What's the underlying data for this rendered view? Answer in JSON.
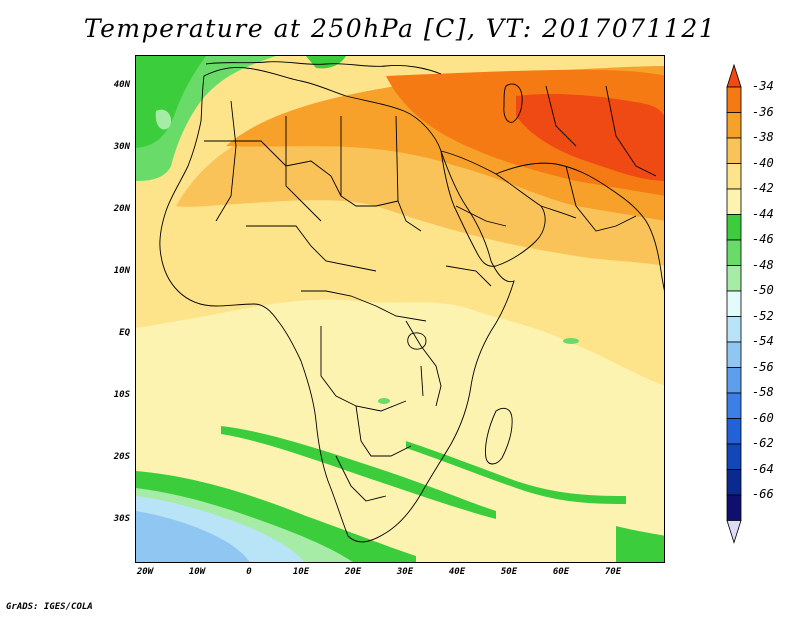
{
  "title": "Temperature at 250hPa [C], VT: 2017071121",
  "credit": "GrADS: IGES/COLA",
  "latitude_labels": [
    "40N",
    "30N",
    "20N",
    "10N",
    "EQ",
    "10S",
    "20S",
    "30S"
  ],
  "longitude_labels": [
    "20W",
    "10W",
    "0",
    "10E",
    "20E",
    "30E",
    "40E",
    "50E",
    "60E",
    "70E"
  ],
  "colorbar": {
    "labels": [
      "-34",
      "-36",
      "-38",
      "-40",
      "-42",
      "-44",
      "-46",
      "-48",
      "-50",
      "-52",
      "-54",
      "-56",
      "-58",
      "-60",
      "-62",
      "-64",
      "-66"
    ],
    "colors": [
      "#f04a14",
      "#f57a14",
      "#f7a02a",
      "#f9c35a",
      "#fde38a",
      "#fdf3b0",
      "#3ccd3c",
      "#68db68",
      "#a6eca6",
      "#e4fbfb",
      "#b9e4f7",
      "#8fc6f2",
      "#5d9eed",
      "#3b7fe8",
      "#2262d8",
      "#1347b8",
      "#0a2a90",
      "#0f0f70",
      "#dcdcf8"
    ]
  },
  "map": {
    "domain": "Africa and Middle East",
    "lon_range": [
      -22,
      80
    ],
    "lat_range": [
      -36,
      45
    ],
    "field": "temperature",
    "level": "250hPa",
    "units": "C",
    "valid_time": "2017071121"
  }
}
